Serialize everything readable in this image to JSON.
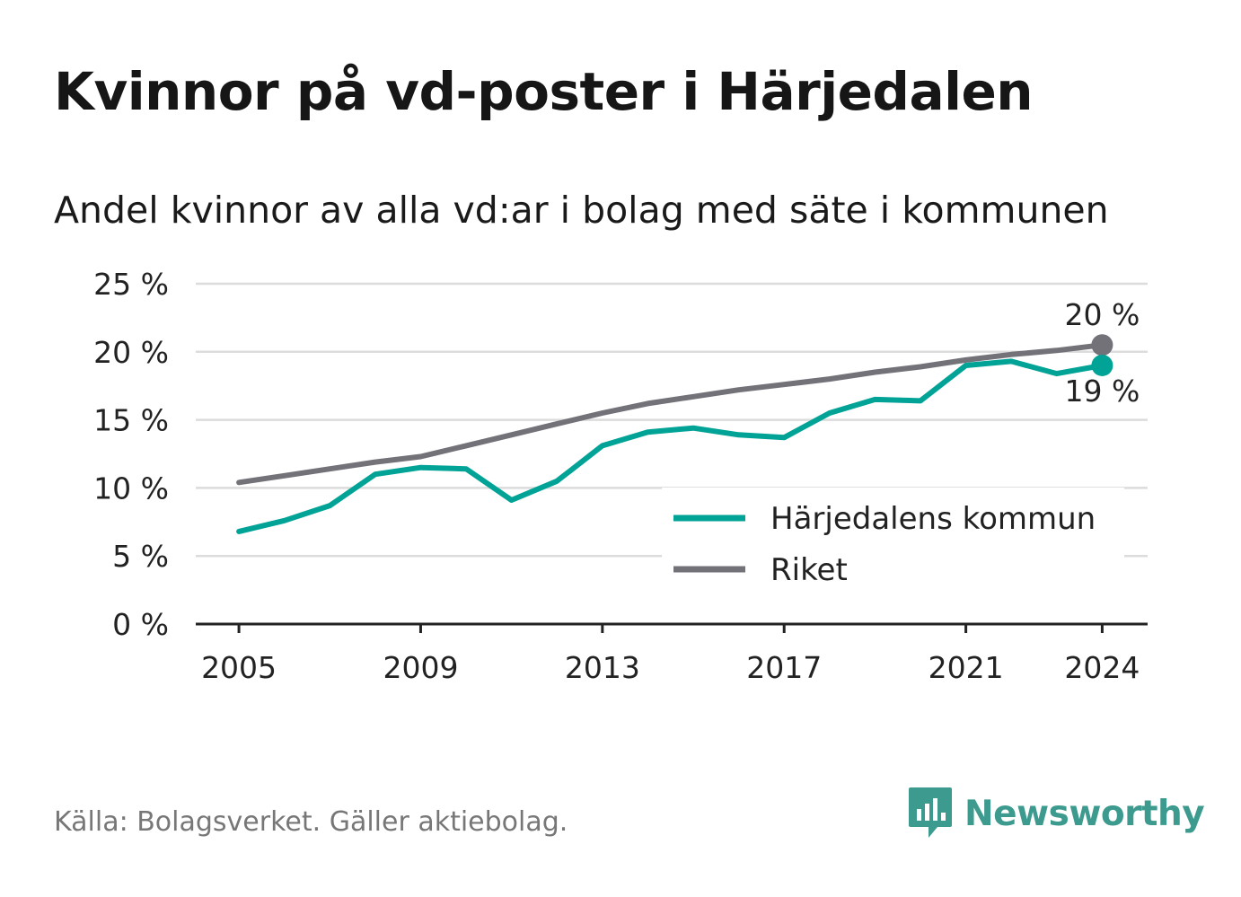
{
  "title": "Kvinnor på vd-poster i Härjedalen",
  "subtitle": "Andel kvinnor av alla vd:ar i bolag med säte i kommunen",
  "source": "Källa: Bolagsverket. Gäller aktiebolag.",
  "brand": "Newsworthy",
  "colors": {
    "kommun": "#00a396",
    "riket": "#747279",
    "grid": "#dcdcdc",
    "axis": "#222222",
    "brand": "#3d9a8e"
  },
  "chart_data": {
    "type": "line",
    "title": "Kvinnor på vd-poster i Härjedalen",
    "subtitle": "Andel kvinnor av alla vd:ar i bolag med säte i kommunen",
    "xlabel": "",
    "ylabel": "",
    "ylim": [
      0,
      25
    ],
    "y_ticks": [
      0,
      5,
      10,
      15,
      20,
      25
    ],
    "y_tick_labels": [
      "0 %",
      "5 %",
      "10 %",
      "15 %",
      "20 %",
      "25 %"
    ],
    "x_ticks": [
      2005,
      2009,
      2013,
      2017,
      2021,
      2024
    ],
    "x_tick_labels": [
      "2005",
      "2009",
      "2013",
      "2017",
      "2021",
      "2024"
    ],
    "x": [
      2005,
      2006,
      2007,
      2008,
      2009,
      2010,
      2011,
      2012,
      2013,
      2014,
      2015,
      2016,
      2017,
      2018,
      2019,
      2020,
      2021,
      2022,
      2023,
      2024
    ],
    "series": [
      {
        "name": "Härjedalens kommun",
        "color": "#00a396",
        "values": [
          6.8,
          7.6,
          8.7,
          11.0,
          11.5,
          11.4,
          9.1,
          10.5,
          13.1,
          14.1,
          14.4,
          13.9,
          13.7,
          15.5,
          16.5,
          16.4,
          19.0,
          19.3,
          18.4,
          19.0
        ],
        "end_label": "19 %"
      },
      {
        "name": "Riket",
        "color": "#747279",
        "values": [
          10.4,
          10.9,
          11.4,
          11.9,
          12.3,
          13.1,
          13.9,
          14.7,
          15.5,
          16.2,
          16.7,
          17.2,
          17.6,
          18.0,
          18.5,
          18.9,
          19.4,
          19.8,
          20.1,
          20.5
        ],
        "end_label": "20 %"
      }
    ],
    "legend": {
      "position": "center-right",
      "entries": [
        "Härjedalens kommun",
        "Riket"
      ]
    },
    "grid": true
  }
}
